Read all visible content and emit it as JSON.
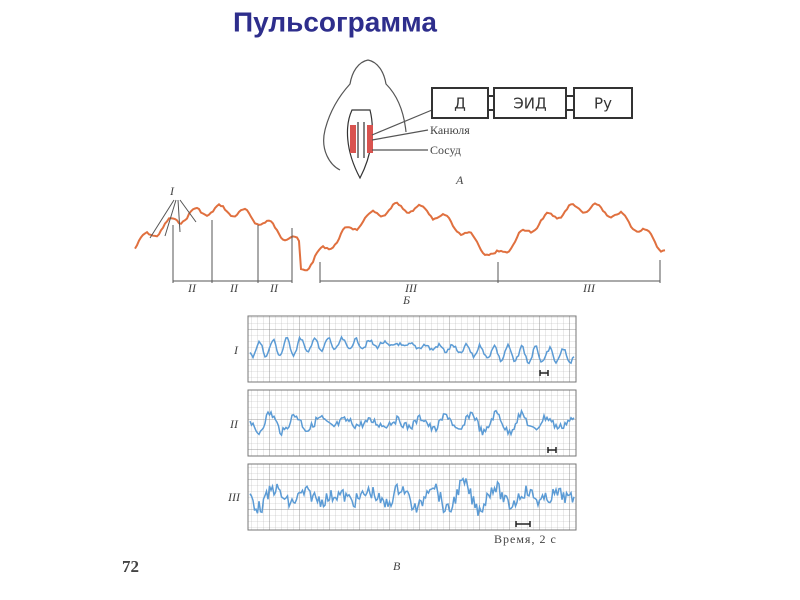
{
  "title": "Пульсограмма",
  "panel_a": {
    "blocks": [
      "Д",
      "ЭИД",
      "Ру"
    ],
    "labels": [
      "Канюля",
      "Сосуд"
    ],
    "caption": "А"
  },
  "panel_b": {
    "marker": "I",
    "segments_left": [
      "II",
      "II",
      "II"
    ],
    "segments_right": [
      "III",
      "III"
    ],
    "caption": "Б"
  },
  "panel_v": {
    "rows": [
      "I",
      "II",
      "III"
    ],
    "time_label": "Время, 2 с",
    "caption": "В"
  },
  "page_number": "72"
}
